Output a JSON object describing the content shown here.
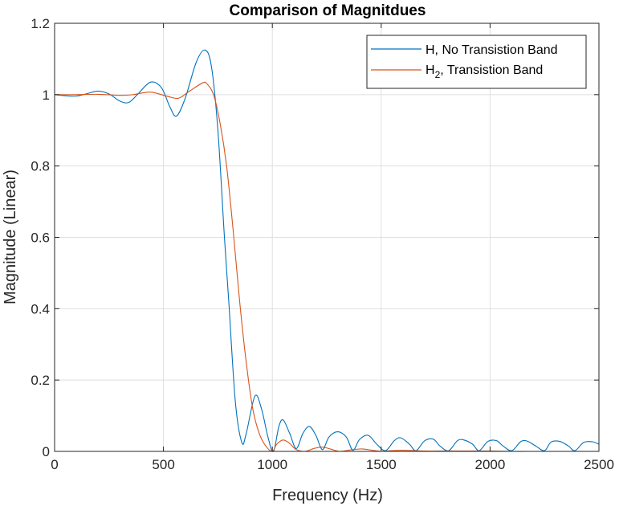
{
  "chart_data": {
    "type": "line",
    "title": "Comparison of Magnitdues",
    "xlabel": "Frequency (Hz)",
    "ylabel": "Magnitude (Linear)",
    "xlim": [
      0,
      2500
    ],
    "ylim": [
      0,
      1.2
    ],
    "xticks": [
      0,
      500,
      1000,
      1500,
      2000,
      2500
    ],
    "xtick_labels": [
      "0",
      "500",
      "1000",
      "1500",
      "2000",
      "2500"
    ],
    "yticks": [
      0,
      0.2,
      0.4,
      0.6,
      0.8,
      1,
      1.2
    ],
    "ytick_labels": [
      "0",
      "0.2",
      "0.4",
      "0.6",
      "0.8",
      "1",
      "1.2"
    ],
    "grid": true,
    "legend_position": "top-right",
    "series": [
      {
        "name": "H, No Transistion Band",
        "legend_main": "H, No Transistion Band",
        "color": "#0072BD",
        "x": [
          0,
          50,
          100,
          150,
          200,
          250,
          300,
          340,
          380,
          440,
          490,
          530,
          560,
          600,
          650,
          690,
          720,
          750,
          780,
          800,
          830,
          860,
          880,
          920,
          950,
          980,
          1005,
          1030,
          1050,
          1080,
          1110,
          1140,
          1170,
          1200,
          1230,
          1260,
          1300,
          1340,
          1370,
          1400,
          1440,
          1480,
          1520,
          1560,
          1590,
          1630,
          1660,
          1700,
          1740,
          1770,
          1810,
          1850,
          1880,
          1920,
          1950,
          1990,
          2030,
          2060,
          2100,
          2140,
          2170,
          2210,
          2250,
          2280,
          2320,
          2360,
          2390,
          2430,
          2470,
          2500
        ],
        "y": [
          1.0,
          0.997,
          0.996,
          1.003,
          1.01,
          1.002,
          0.982,
          0.978,
          1.0,
          1.035,
          1.02,
          0.965,
          0.94,
          0.99,
          1.09,
          1.125,
          1.08,
          0.9,
          0.6,
          0.42,
          0.14,
          0.025,
          0.05,
          0.155,
          0.12,
          0.04,
          0.0,
          0.07,
          0.088,
          0.05,
          0.008,
          0.05,
          0.07,
          0.045,
          0.005,
          0.04,
          0.055,
          0.04,
          0.003,
          0.033,
          0.045,
          0.02,
          0.002,
          0.03,
          0.038,
          0.02,
          0.002,
          0.03,
          0.034,
          0.015,
          0.002,
          0.03,
          0.032,
          0.02,
          0.002,
          0.028,
          0.03,
          0.015,
          0.002,
          0.027,
          0.029,
          0.015,
          0.002,
          0.026,
          0.028,
          0.015,
          0.002,
          0.025,
          0.027,
          0.02
        ]
      },
      {
        "name": "H2, Transistion Band",
        "legend_main": "H",
        "legend_sub": "2",
        "legend_rest": ", Transistion Band",
        "color": "#D95319",
        "x": [
          0,
          100,
          200,
          300,
          360,
          440,
          520,
          570,
          620,
          680,
          700,
          730,
          760,
          790,
          820,
          850,
          880,
          910,
          940,
          970,
          1000,
          1020,
          1050,
          1080,
          1110,
          1150,
          1190,
          1230,
          1270,
          1310,
          1360,
          1410,
          1460,
          1500,
          1550,
          1600,
          1700,
          1800,
          1900,
          2000,
          2100,
          2200,
          2300,
          2400,
          2500
        ],
        "y": [
          1.0,
          1.0,
          1.001,
          0.998,
          1.0,
          1.007,
          0.995,
          0.99,
          1.01,
          1.033,
          1.03,
          1.0,
          0.92,
          0.8,
          0.62,
          0.42,
          0.25,
          0.12,
          0.05,
          0.015,
          0.0,
          0.02,
          0.032,
          0.022,
          0.005,
          0.0,
          0.008,
          0.012,
          0.006,
          0.0,
          0.004,
          0.007,
          0.003,
          0.0,
          0.002,
          0.003,
          0.001,
          0.001,
          0.001,
          0.001,
          0.0,
          0.0,
          0.0,
          0.0,
          0.0
        ]
      }
    ]
  }
}
